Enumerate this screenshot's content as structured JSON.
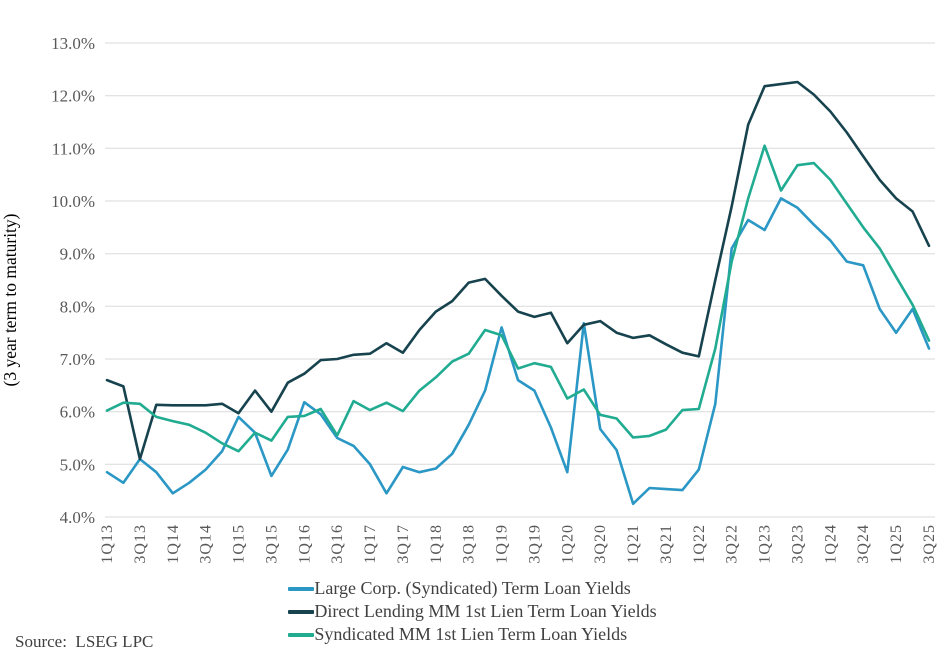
{
  "style": {
    "grid_color": "#dadada",
    "tick_text_color": "#595959",
    "legend_text_color": "#404040",
    "source_text_color": "#404040",
    "background_color": "#ffffff"
  },
  "source_note": "Source:  LSEG LPC",
  "chart_data": {
    "type": "line",
    "title": "",
    "xlabel": "",
    "ylabel": "(3 year term to maturity)",
    "ylim": [
      4.0,
      13.0
    ],
    "y_tick_step": 1.0,
    "y_tick_format": "0.0%",
    "grid": "horizontal",
    "legend_position": "bottom",
    "x_tick_every": 2,
    "x_tick_rotation": -90,
    "categories": [
      "1Q13",
      "2Q13",
      "3Q13",
      "4Q13",
      "1Q14",
      "2Q14",
      "3Q14",
      "4Q14",
      "1Q15",
      "2Q15",
      "3Q15",
      "4Q15",
      "1Q16",
      "2Q16",
      "3Q16",
      "4Q16",
      "1Q17",
      "2Q17",
      "3Q17",
      "4Q17",
      "1Q18",
      "2Q18",
      "3Q18",
      "4Q18",
      "1Q19",
      "2Q19",
      "3Q19",
      "4Q19",
      "1Q20",
      "2Q20",
      "3Q20",
      "4Q20",
      "1Q21",
      "2Q21",
      "3Q21",
      "4Q21",
      "1Q22",
      "2Q22",
      "3Q22",
      "4Q22",
      "1Q23",
      "2Q23",
      "3Q23",
      "4Q23",
      "1Q24",
      "2Q24",
      "3Q24",
      "4Q24",
      "1Q25",
      "2Q25",
      "3Q25"
    ],
    "series": [
      {
        "name": "Large Corp. (Syndicated) Term Loan Yields",
        "color": "#2a97c5",
        "values": [
          4.85,
          4.65,
          5.1,
          4.85,
          4.45,
          4.65,
          4.9,
          5.25,
          5.9,
          5.6,
          4.78,
          5.28,
          6.18,
          5.95,
          5.5,
          5.35,
          5.0,
          4.45,
          4.95,
          4.85,
          4.92,
          5.2,
          5.75,
          6.4,
          7.6,
          6.6,
          6.4,
          5.7,
          4.85,
          7.68,
          5.67,
          5.27,
          4.25,
          4.55,
          4.53,
          4.51,
          4.9,
          6.15,
          9.1,
          9.64,
          9.45,
          10.05,
          9.87,
          9.55,
          9.25,
          8.85,
          8.78,
          7.95,
          7.5,
          7.95,
          7.2
        ]
      },
      {
        "name": "Direct Lending MM 1st Lien Term Loan Yields",
        "color": "#17434e",
        "values": [
          6.6,
          6.48,
          5.1,
          6.13,
          6.12,
          6.12,
          6.12,
          6.15,
          5.97,
          6.4,
          6.0,
          6.55,
          6.72,
          6.98,
          7.0,
          7.08,
          7.1,
          7.3,
          7.12,
          7.55,
          7.9,
          8.1,
          8.45,
          8.52,
          8.2,
          7.9,
          7.8,
          7.88,
          7.3,
          7.65,
          7.72,
          7.5,
          7.4,
          7.45,
          7.28,
          7.12,
          7.05,
          8.5,
          9.9,
          11.45,
          12.18,
          12.22,
          12.26,
          12.02,
          11.7,
          11.3,
          10.85,
          10.4,
          10.05,
          9.8,
          9.15
        ]
      },
      {
        "name": "Syndicated MM 1st Lien Term Loan Yields",
        "color": "#21ac92",
        "values": [
          6.02,
          6.17,
          6.15,
          5.9,
          5.82,
          5.75,
          5.6,
          5.4,
          5.25,
          5.6,
          5.45,
          5.9,
          5.92,
          6.05,
          5.55,
          6.2,
          6.03,
          6.17,
          6.01,
          6.4,
          6.65,
          6.95,
          7.1,
          7.55,
          7.45,
          6.82,
          6.92,
          6.85,
          6.25,
          6.42,
          5.94,
          5.87,
          5.51,
          5.54,
          5.66,
          6.03,
          6.05,
          7.2,
          8.85,
          10.05,
          11.05,
          10.2,
          10.68,
          10.72,
          10.4,
          9.95,
          9.5,
          9.1,
          8.56,
          8.03,
          7.35
        ]
      }
    ]
  }
}
